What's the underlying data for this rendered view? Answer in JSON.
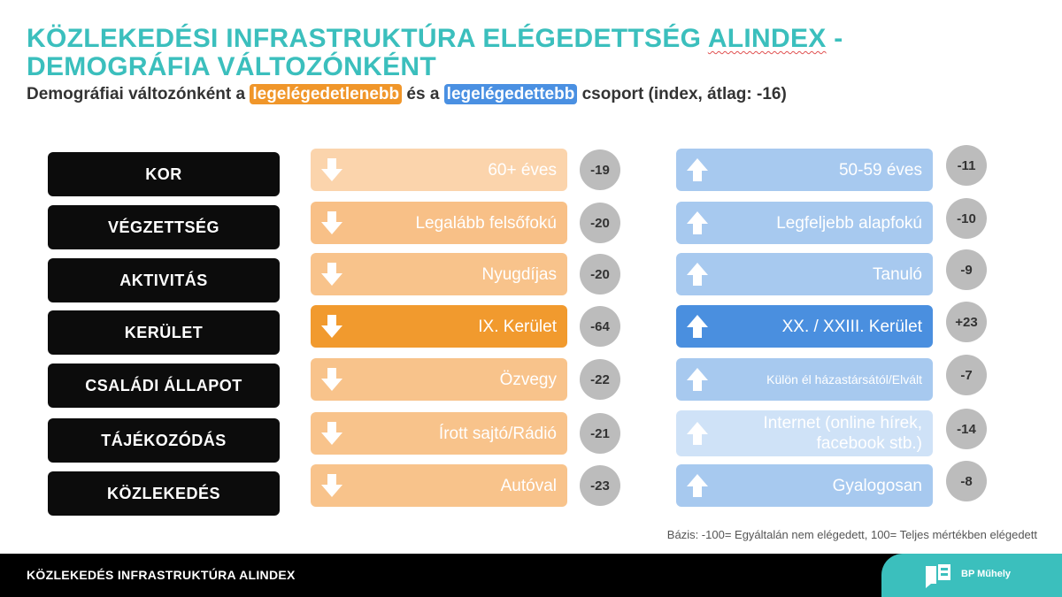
{
  "title": {
    "line1_a": "KÖZLEKEDÉSI INFRASTRUKTÚRA ELÉGEDETTSÉG ",
    "line1_b": "ALINDEX",
    "line1_c": " -",
    "line2": "DEMOGRÁFIA VÁLTOZÓNKÉNT"
  },
  "subtitle": {
    "part1": "Demográfiai változónként a ",
    "worst": "legelégedetlenebb",
    "part2": " és a ",
    "best": "legelégedettebb",
    "part3": " csoport (index, átlag: -16)"
  },
  "colors": {
    "title": "#3bbfbd",
    "orange_strong": "#f19a2e",
    "blue_strong": "#4a8fdf",
    "badge": "#bcbcbc",
    "category_bg": "#0c0c0c"
  },
  "chart_data": {
    "type": "table",
    "average": -16,
    "categories": [
      "KOR",
      "VÉGZETTSÉG",
      "AKTIVITÁS",
      "KERÜLET",
      "CSALÁDI ÁLLAPOT",
      "TÁJÉKOZÓDÁS",
      "KÖZLEKEDÉS"
    ],
    "least_satisfied": [
      {
        "group": "60+ éves",
        "value": -19,
        "label": "-19"
      },
      {
        "group": "Legalább felsőfokú",
        "value": -20,
        "label": "-20"
      },
      {
        "group": "Nyugdíjas",
        "value": -20,
        "label": "-20"
      },
      {
        "group": "IX. Kerület",
        "value": -64,
        "label": "-64"
      },
      {
        "group": "Özvegy",
        "value": -22,
        "label": "-22"
      },
      {
        "group": "Írott sajtó/Rádió",
        "value": -21,
        "label": "-21"
      },
      {
        "group": "Autóval",
        "value": -23,
        "label": "-23"
      }
    ],
    "most_satisfied": [
      {
        "group": "50-59 éves",
        "value": -11,
        "label": "-11"
      },
      {
        "group": "Legfeljebb alapfokú",
        "value": -10,
        "label": "-10"
      },
      {
        "group": "Tanuló",
        "value": -9,
        "label": "-9"
      },
      {
        "group": "XX. / XXIII. Kerület",
        "value": 23,
        "label": "+23"
      },
      {
        "group": "Külön él házastársától/Elvált",
        "value": -7,
        "label": "-7"
      },
      {
        "group": "Internet (online hírek, facebook stb.)",
        "value": -14,
        "label": "-14"
      },
      {
        "group": "Gyalogosan",
        "value": -8,
        "label": "-8"
      }
    ]
  },
  "footnote": "Bázis: -100= Egyáltalán nem elégedett, 100= Teljes mértékben elégedett",
  "footer": {
    "title": "KÖZLEKEDÉS INFRASTRUKTÚRA ALINDEX",
    "brand": "BP Műhely"
  }
}
